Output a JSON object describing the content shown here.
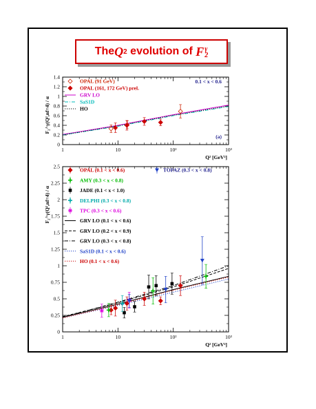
{
  "title": {
    "prefix": "The ",
    "q": "Q",
    "qsup": "2",
    "mid": " evolution of ",
    "f": "F",
    "fsub": "2",
    "fsup": "γ"
  },
  "colors": {
    "opal_open": "#cc2200",
    "opal_red": "#cc0000",
    "amy": "#00bb00",
    "jade": "#000000",
    "delphi": "#00aaaa",
    "tpc": "#dd00dd",
    "topaz": "#1e40c8",
    "grv": "#cc00cc",
    "sasid": "#00bbbb",
    "ho": "#cc0000",
    "label_blue": "#1e1e8c"
  },
  "chart_data": [
    {
      "type": "scatter",
      "ylabel": "F₂^γ(Q²,nf=4) / α",
      "xlabel": "Q² [GeV²]",
      "xscale": "log",
      "xlim": [
        1,
        1000
      ],
      "ylim": [
        0,
        1.4
      ],
      "yticks": [
        "0",
        "0.2",
        "0.4",
        "0.6",
        "0.8",
        "1",
        "1.2",
        "1.4"
      ],
      "xticks": [
        "1",
        "10",
        "10²",
        "10³"
      ],
      "xrange_label": "0.1 < x < 0.6",
      "panel_label": "(a)",
      "legend": [
        {
          "name": "OPAL (91 GeV)",
          "symbol": "open-diamond",
          "color": "#cc2200"
        },
        {
          "name": "OPAL (161, 172 GeV) prel.",
          "symbol": "filled-diamond",
          "color": "#cc0000"
        },
        {
          "name": "GRV LO",
          "symbol": "solid",
          "color": "#cc00cc"
        },
        {
          "name": "SaS1D",
          "symbol": "dashdot",
          "color": "#00bbbb"
        },
        {
          "name": "HO",
          "symbol": "dotted",
          "color": "#000000"
        }
      ],
      "series": [
        {
          "name": "OPAL (91 GeV)",
          "symbol": "open-diamond",
          "color": "#cc2200",
          "points": [
            [
              7.5,
              0.33,
              0.08
            ],
            [
              14.7,
              0.41,
              0.08
            ],
            [
              135,
              0.69,
              0.14
            ]
          ]
        },
        {
          "name": "OPAL (161, 172 GeV) prel.",
          "symbol": "filled-diamond",
          "color": "#cc0000",
          "points": [
            [
              9.0,
              0.35,
              0.1
            ],
            [
              14.5,
              0.4,
              0.1
            ],
            [
              30,
              0.48,
              0.08
            ],
            [
              59,
              0.46,
              0.07
            ]
          ]
        }
      ],
      "curves": [
        {
          "name": "GRV LO",
          "style": "solid",
          "color": "#cc00cc",
          "points": [
            [
              1,
              0.21
            ],
            [
              10,
              0.4
            ],
            [
              100,
              0.62
            ],
            [
              1000,
              0.82
            ]
          ]
        },
        {
          "name": "SaS1D",
          "style": "dashdot",
          "color": "#00bbbb",
          "points": [
            [
              1,
              0.2
            ],
            [
              10,
              0.38
            ],
            [
              100,
              0.6
            ],
            [
              1000,
              0.79
            ]
          ]
        },
        {
          "name": "HO",
          "style": "dotted",
          "color": "#000000",
          "points": [
            [
              1,
              0.2
            ],
            [
              10,
              0.39
            ],
            [
              100,
              0.61
            ],
            [
              1000,
              0.8
            ]
          ]
        }
      ]
    },
    {
      "type": "scatter",
      "ylabel": "F₂^γ(Q²,nf=4) / α",
      "xlabel": "Q² [GeV²]",
      "xscale": "log",
      "xlim": [
        1,
        1000
      ],
      "ylim": [
        0,
        2.5
      ],
      "yticks": [
        "0",
        "0.25",
        "0.5",
        "0.75",
        "1",
        "1.25",
        "1.5",
        "1.75",
        "2",
        "2.25",
        "2.5"
      ],
      "xticks": [
        "1",
        "10",
        "10²",
        "10³"
      ],
      "legend": [
        {
          "name": "OPAL (0.1 < x < 0.6)",
          "symbol": "filled-diamond",
          "color": "#cc0000"
        },
        {
          "name": "AMY (0.3 < x < 0.8)",
          "symbol": "cross",
          "color": "#00bb00"
        },
        {
          "name": "JADE (0.1 < x < 1.0)",
          "symbol": "filled-square",
          "color": "#000000"
        },
        {
          "name": "DELPHI (0.3 < x < 0.8)",
          "symbol": "cross",
          "color": "#00aaaa"
        },
        {
          "name": "TPC (0.3 < x < 0.6)",
          "symbol": "star",
          "color": "#dd00dd"
        },
        {
          "name": "GRV LO (0.1 < x < 0.6)",
          "symbol": "solid",
          "color": "#000000"
        },
        {
          "name": "GRV LO (0.2 < x < 0.9)",
          "symbol": "dashed",
          "color": "#000000"
        },
        {
          "name": "GRV LO (0.3 < x < 0.8)",
          "symbol": "dashdot",
          "color": "#000000"
        },
        {
          "name": "SaS1D (0.1 < x < 0.6)",
          "symbol": "dotted",
          "color": "#1e40c8"
        },
        {
          "name": "HO (0.1 < x < 0.6)",
          "symbol": "dotted",
          "color": "#cc0000"
        }
      ],
      "legend_right": {
        "name": "TOPAZ (0.3 < x < 0.8)",
        "symbol": "down-triangle",
        "color": "#1e40c8"
      },
      "series": [
        {
          "name": "OPAL (0.1 < x < 0.6)",
          "symbol": "filled-diamond",
          "color": "#cc0000",
          "points": [
            [
              7.5,
              0.33,
              0.07
            ],
            [
              9.0,
              0.36,
              0.12
            ],
            [
              14.5,
              0.43,
              0.1
            ],
            [
              30,
              0.5,
              0.1
            ],
            [
              59,
              0.47,
              0.06
            ],
            [
              135,
              0.7,
              0.15
            ]
          ]
        },
        {
          "name": "AMY (0.3 < x < 0.8)",
          "symbol": "cross",
          "color": "#00bb00",
          "points": [
            [
              6.8,
              0.33,
              0.1
            ],
            [
              43,
              0.62,
              0.2
            ],
            [
              390,
              0.84,
              0.18
            ]
          ]
        },
        {
          "name": "JADE (0.1 < x < 1.0)",
          "symbol": "filled-square",
          "color": "#000000",
          "points": [
            [
              13,
              0.29,
              0.08
            ],
            [
              20,
              0.38,
              0.08
            ],
            [
              36,
              0.68,
              0.18
            ],
            [
              49,
              0.7,
              0.15
            ],
            [
              95,
              0.73,
              0.16
            ]
          ]
        },
        {
          "name": "DELPHI (0.3 < x < 0.8)",
          "symbol": "cross",
          "color": "#00aaaa",
          "points": [
            [
              12,
              0.43,
              0.12
            ]
          ]
        },
        {
          "name": "TPC (0.3 < x < 0.6)",
          "symbol": "star",
          "color": "#dd00dd",
          "points": [
            [
              5.1,
              0.32,
              0.1
            ],
            [
              16,
              0.48,
              0.12
            ]
          ]
        },
        {
          "name": "TOPAZ (0.3 < x < 0.8)",
          "symbol": "down-triangle",
          "color": "#1e40c8",
          "points": [
            [
              16,
              0.47,
              0.1
            ],
            [
              73,
              0.64,
              0.2
            ],
            [
              335,
              1.08,
              0.36
            ]
          ]
        }
      ],
      "curves": [
        {
          "name": "GRV LO (0.1 < x < 0.6)",
          "style": "solid",
          "color": "#000000",
          "points": [
            [
              1,
              0.22
            ],
            [
              10,
              0.42
            ],
            [
              100,
              0.64
            ],
            [
              1000,
              0.84
            ]
          ]
        },
        {
          "name": "GRV LO (0.2 < x < 0.9)",
          "style": "dashed",
          "color": "#000000",
          "points": [
            [
              1,
              0.23
            ],
            [
              10,
              0.44
            ],
            [
              100,
              0.68
            ],
            [
              1000,
              0.96
            ]
          ]
        },
        {
          "name": "GRV LO (0.3 < x < 0.8)",
          "style": "dashdot",
          "color": "#000000",
          "points": [
            [
              1,
              0.22
            ],
            [
              10,
              0.45
            ],
            [
              100,
              0.7
            ],
            [
              1000,
              1.0
            ]
          ]
        },
        {
          "name": "SaS1D (0.1 < x < 0.6)",
          "style": "dotted",
          "color": "#1e40c8",
          "points": [
            [
              1,
              0.21
            ],
            [
              10,
              0.4
            ],
            [
              100,
              0.6
            ],
            [
              1000,
              0.8
            ]
          ]
        },
        {
          "name": "HO (0.1 < x < 0.6)",
          "style": "dotted",
          "color": "#cc0000",
          "points": [
            [
              1,
              0.21
            ],
            [
              10,
              0.41
            ],
            [
              100,
              0.63
            ],
            [
              1000,
              0.83
            ]
          ]
        }
      ]
    }
  ]
}
